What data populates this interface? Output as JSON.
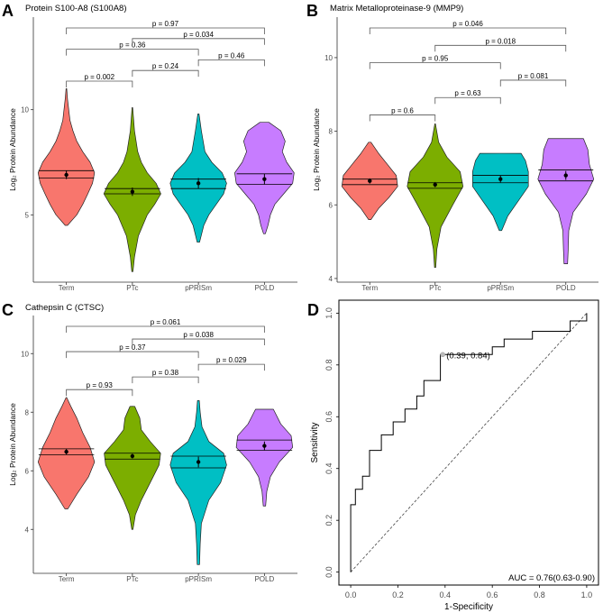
{
  "group_colors": [
    "#F8766D",
    "#7CAE00",
    "#00BFC4",
    "#C77CFF"
  ],
  "chart_data": [
    {
      "panel": "A",
      "type": "violin",
      "title": "Protein S100-A8 (S100A8)",
      "ylabel": "Log₂ Protein Abundance",
      "xlabel": "",
      "categories": [
        "Term",
        "PTc",
        "pPRISm",
        "POLD"
      ],
      "ylim": [
        1.8,
        14.4
      ],
      "yticks": [
        5,
        10
      ],
      "violins": [
        {
          "min": 4.5,
          "max": 11.0,
          "profile": [
            [
              4.5,
              0.04
            ],
            [
              5.0,
              0.35
            ],
            [
              5.5,
              0.55
            ],
            [
              6.0,
              0.72
            ],
            [
              6.5,
              0.88
            ],
            [
              7.0,
              0.95
            ],
            [
              7.5,
              0.8
            ],
            [
              8.0,
              0.55
            ],
            [
              8.5,
              0.35
            ],
            [
              9.0,
              0.22
            ],
            [
              9.5,
              0.12
            ],
            [
              10.5,
              0.04
            ],
            [
              11.0,
              0.01
            ]
          ]
        },
        {
          "min": 2.3,
          "max": 10.1,
          "profile": [
            [
              2.3,
              0.02
            ],
            [
              3.0,
              0.07
            ],
            [
              4.0,
              0.2
            ],
            [
              5.0,
              0.5
            ],
            [
              5.5,
              0.75
            ],
            [
              6.0,
              0.96
            ],
            [
              6.5,
              0.8
            ],
            [
              7.0,
              0.5
            ],
            [
              7.5,
              0.3
            ],
            [
              8.0,
              0.18
            ],
            [
              9.0,
              0.07
            ],
            [
              10.1,
              0.01
            ]
          ]
        },
        {
          "min": 3.7,
          "max": 9.8,
          "profile": [
            [
              3.7,
              0.04
            ],
            [
              4.5,
              0.18
            ],
            [
              5.0,
              0.35
            ],
            [
              5.5,
              0.6
            ],
            [
              6.0,
              0.85
            ],
            [
              6.5,
              0.95
            ],
            [
              7.0,
              0.8
            ],
            [
              7.5,
              0.45
            ],
            [
              8.0,
              0.22
            ],
            [
              9.0,
              0.1
            ],
            [
              9.8,
              0.02
            ]
          ]
        },
        {
          "min": 4.1,
          "max": 9.4,
          "profile": [
            [
              4.1,
              0.03
            ],
            [
              4.5,
              0.12
            ],
            [
              5.0,
              0.2
            ],
            [
              5.5,
              0.35
            ],
            [
              6.0,
              0.65
            ],
            [
              6.5,
              0.95
            ],
            [
              7.0,
              1.0
            ],
            [
              7.5,
              0.75
            ],
            [
              8.0,
              0.6
            ],
            [
              8.5,
              0.7
            ],
            [
              9.0,
              0.55
            ],
            [
              9.4,
              0.15
            ]
          ]
        }
      ],
      "means": [
        6.9,
        6.1,
        6.5,
        6.7
      ],
      "errors": [
        0.2,
        0.2,
        0.25,
        0.25
      ],
      "ci": [
        [
          6.75,
          7.1
        ],
        [
          6.0,
          6.25
        ],
        [
          6.25,
          6.7
        ],
        [
          6.45,
          6.95
        ]
      ],
      "comparisons": [
        {
          "pair": [
            1,
            2
          ],
          "label": "p = 0.002",
          "level": 1
        },
        {
          "pair": [
            2,
            3
          ],
          "label": "p = 0.24",
          "level": 2
        },
        {
          "pair": [
            3,
            4
          ],
          "label": "p = 0.46",
          "level": 3
        },
        {
          "pair": [
            1,
            3
          ],
          "label": "p = 0.36",
          "level": 4
        },
        {
          "pair": [
            2,
            4
          ],
          "label": "p = 0.034",
          "level": 5
        },
        {
          "pair": [
            1,
            4
          ],
          "label": "p = 0.97",
          "level": 6
        }
      ]
    },
    {
      "panel": "B",
      "type": "violin",
      "title": "Matrix Metalloproteinase-9 (MMP9)",
      "ylabel": "Log₂ Protein Abundance",
      "xlabel": "",
      "categories": [
        "Term",
        "PTc",
        "pPRISm",
        "POLD"
      ],
      "ylim": [
        3.9,
        11.1
      ],
      "yticks": [
        4,
        6,
        8,
        10
      ],
      "violins": [
        {
          "min": 5.6,
          "max": 7.7,
          "profile": [
            [
              5.6,
              0.04
            ],
            [
              5.9,
              0.3
            ],
            [
              6.2,
              0.65
            ],
            [
              6.5,
              0.95
            ],
            [
              6.8,
              0.9
            ],
            [
              7.1,
              0.6
            ],
            [
              7.4,
              0.3
            ],
            [
              7.7,
              0.04
            ]
          ]
        },
        {
          "min": 4.3,
          "max": 8.2,
          "profile": [
            [
              4.3,
              0.02
            ],
            [
              4.8,
              0.06
            ],
            [
              5.4,
              0.2
            ],
            [
              6.0,
              0.6
            ],
            [
              6.5,
              0.95
            ],
            [
              6.9,
              0.85
            ],
            [
              7.3,
              0.4
            ],
            [
              7.7,
              0.12
            ],
            [
              8.2,
              0.01
            ]
          ]
        },
        {
          "min": 5.3,
          "max": 7.4,
          "profile": [
            [
              5.3,
              0.04
            ],
            [
              5.7,
              0.25
            ],
            [
              6.1,
              0.6
            ],
            [
              6.5,
              0.95
            ],
            [
              6.9,
              0.95
            ],
            [
              7.2,
              0.85
            ],
            [
              7.4,
              0.7
            ]
          ]
        },
        {
          "min": 4.4,
          "max": 7.8,
          "profile": [
            [
              4.4,
              0.06
            ],
            [
              4.8,
              0.08
            ],
            [
              5.3,
              0.1
            ],
            [
              5.8,
              0.25
            ],
            [
              6.3,
              0.7
            ],
            [
              6.7,
              0.95
            ],
            [
              7.1,
              0.8
            ],
            [
              7.5,
              0.75
            ],
            [
              7.8,
              0.6
            ]
          ]
        }
      ],
      "means": [
        6.65,
        6.55,
        6.7,
        6.8
      ],
      "errors": [
        0.07,
        0.07,
        0.09,
        0.12
      ],
      "ci": [
        [
          6.55,
          6.7
        ],
        [
          6.45,
          6.6
        ],
        [
          6.6,
          6.8
        ],
        [
          6.65,
          6.95
        ]
      ],
      "comparisons": [
        {
          "pair": [
            1,
            2
          ],
          "label": "p = 0.6",
          "level": 1
        },
        {
          "pair": [
            2,
            3
          ],
          "label": "p = 0.63",
          "level": 2
        },
        {
          "pair": [
            3,
            4
          ],
          "label": "p = 0.081",
          "level": 3
        },
        {
          "pair": [
            1,
            3
          ],
          "label": "p = 0.95",
          "level": 4
        },
        {
          "pair": [
            2,
            4
          ],
          "label": "p = 0.018",
          "level": 5
        },
        {
          "pair": [
            1,
            4
          ],
          "label": "p = 0.046",
          "level": 6
        }
      ]
    },
    {
      "panel": "C",
      "type": "violin",
      "title": "Cathepsin C (CTSC)",
      "ylabel": "Log₂ Protein Abundance",
      "xlabel": "",
      "categories": [
        "Term",
        "PTc",
        "pPRISm",
        "POLD"
      ],
      "ylim": [
        2.5,
        11.3
      ],
      "yticks": [
        4,
        6,
        8,
        10
      ],
      "violins": [
        {
          "min": 4.7,
          "max": 8.5,
          "profile": [
            [
              4.7,
              0.05
            ],
            [
              5.2,
              0.35
            ],
            [
              5.8,
              0.75
            ],
            [
              6.3,
              0.95
            ],
            [
              6.8,
              0.8
            ],
            [
              7.3,
              0.55
            ],
            [
              7.8,
              0.35
            ],
            [
              8.2,
              0.15
            ],
            [
              8.5,
              0.01
            ]
          ]
        },
        {
          "min": 4.0,
          "max": 8.2,
          "profile": [
            [
              4.0,
              0.02
            ],
            [
              4.5,
              0.1
            ],
            [
              5.0,
              0.3
            ],
            [
              5.6,
              0.6
            ],
            [
              6.2,
              0.9
            ],
            [
              6.6,
              0.95
            ],
            [
              7.0,
              0.6
            ],
            [
              7.4,
              0.3
            ],
            [
              7.8,
              0.25
            ],
            [
              8.2,
              0.08
            ]
          ]
        },
        {
          "min": 2.8,
          "max": 8.4,
          "profile": [
            [
              2.8,
              0.04
            ],
            [
              3.5,
              0.06
            ],
            [
              4.2,
              0.1
            ],
            [
              5.0,
              0.35
            ],
            [
              5.6,
              0.75
            ],
            [
              6.2,
              0.95
            ],
            [
              6.6,
              0.85
            ],
            [
              7.0,
              0.35
            ],
            [
              7.5,
              0.12
            ],
            [
              8.0,
              0.06
            ],
            [
              8.4,
              0.03
            ]
          ]
        },
        {
          "min": 4.8,
          "max": 8.1,
          "profile": [
            [
              4.8,
              0.04
            ],
            [
              5.3,
              0.08
            ],
            [
              5.8,
              0.2
            ],
            [
              6.3,
              0.5
            ],
            [
              6.8,
              0.95
            ],
            [
              7.2,
              0.9
            ],
            [
              7.6,
              0.55
            ],
            [
              8.1,
              0.3
            ]
          ]
        }
      ],
      "means": [
        6.65,
        6.5,
        6.3,
        6.85
      ],
      "errors": [
        0.1,
        0.08,
        0.18,
        0.15
      ],
      "ci": [
        [
          6.55,
          6.75
        ],
        [
          6.4,
          6.6
        ],
        [
          6.1,
          6.5
        ],
        [
          6.7,
          7.05
        ]
      ],
      "comparisons": [
        {
          "pair": [
            1,
            2
          ],
          "label": "p = 0.93",
          "level": 1
        },
        {
          "pair": [
            2,
            3
          ],
          "label": "p = 0.38",
          "level": 2
        },
        {
          "pair": [
            3,
            4
          ],
          "label": "p = 0.029",
          "level": 3
        },
        {
          "pair": [
            1,
            3
          ],
          "label": "p = 0.37",
          "level": 4
        },
        {
          "pair": [
            2,
            4
          ],
          "label": "p = 0.038",
          "level": 5
        },
        {
          "pair": [
            1,
            4
          ],
          "label": "p = 0.061",
          "level": 6
        }
      ]
    },
    {
      "panel": "D",
      "type": "line",
      "title": "",
      "xlabel": "1-Specificity",
      "ylabel": "Sensitivity",
      "xlim": [
        -0.05,
        1.05
      ],
      "ylim": [
        -0.05,
        1.05
      ],
      "xticks": [
        "0.0",
        "0.2",
        "0.4",
        "0.6",
        "0.8",
        "1.0"
      ],
      "yticks": [
        "0.0",
        "0.2",
        "0.4",
        "0.6",
        "0.8",
        "1.0"
      ],
      "roc": [
        [
          0,
          0
        ],
        [
          0,
          0.26
        ],
        [
          0.02,
          0.26
        ],
        [
          0.02,
          0.32
        ],
        [
          0.05,
          0.32
        ],
        [
          0.05,
          0.37
        ],
        [
          0.08,
          0.37
        ],
        [
          0.08,
          0.47
        ],
        [
          0.13,
          0.47
        ],
        [
          0.13,
          0.53
        ],
        [
          0.18,
          0.53
        ],
        [
          0.18,
          0.58
        ],
        [
          0.23,
          0.58
        ],
        [
          0.23,
          0.63
        ],
        [
          0.28,
          0.63
        ],
        [
          0.28,
          0.68
        ],
        [
          0.31,
          0.68
        ],
        [
          0.31,
          0.74
        ],
        [
          0.38,
          0.74
        ],
        [
          0.38,
          0.84
        ],
        [
          0.6,
          0.84
        ],
        [
          0.6,
          0.87
        ],
        [
          0.65,
          0.87
        ],
        [
          0.65,
          0.9
        ],
        [
          0.77,
          0.9
        ],
        [
          0.77,
          0.93
        ],
        [
          0.93,
          0.93
        ],
        [
          0.93,
          0.97
        ],
        [
          1.0,
          0.97
        ],
        [
          1.0,
          1.0
        ]
      ],
      "diagonal": [
        [
          0,
          0
        ],
        [
          1,
          1
        ]
      ],
      "highlight_point": {
        "x": 0.39,
        "y": 0.84,
        "label": "(0.39, 0.84)"
      },
      "annotation": "AUC = 0.76(0.63-0.90)"
    }
  ]
}
